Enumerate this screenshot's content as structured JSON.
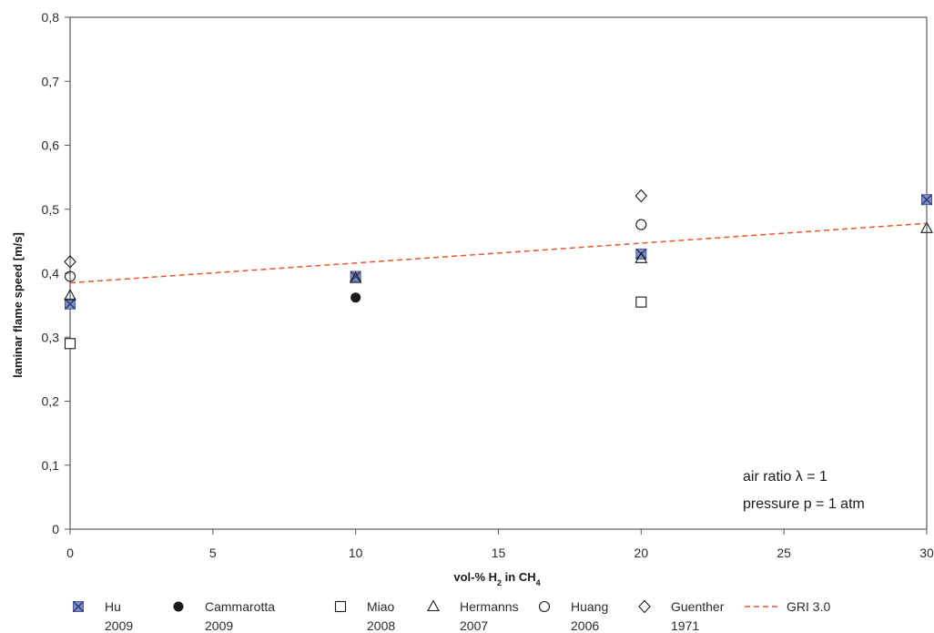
{
  "chart_data": {
    "type": "scatter",
    "xlabel_parts": [
      "vol-% H",
      "2",
      " in CH",
      "4"
    ],
    "ylabel": "laminar flame speed [m/s]",
    "xlim": [
      0,
      30
    ],
    "ylim": [
      0,
      0.8
    ],
    "x_ticks": [
      0,
      5,
      10,
      15,
      20,
      25,
      30
    ],
    "x_tick_labels": [
      "0",
      "5",
      "10",
      "15",
      "20",
      "25",
      "30"
    ],
    "y_ticks": [
      0,
      0.1,
      0.2,
      0.3,
      0.4,
      0.5,
      0.6,
      0.7,
      0.8
    ],
    "y_tick_labels": [
      "0",
      "0,1",
      "0,2",
      "0,3",
      "0,4",
      "0,5",
      "0,6",
      "0,7",
      "0,8"
    ],
    "grid": false,
    "legend_position": "bottom",
    "annotations": [
      "air ratio λ = 1",
      "pressure p = 1 atm"
    ],
    "series": [
      {
        "name": [
          "Hu",
          "2009"
        ],
        "marker": "square-x",
        "color": "#4a5a9c",
        "points": [
          [
            0,
            0.352
          ],
          [
            10,
            0.395
          ],
          [
            20,
            0.43
          ],
          [
            30,
            0.515
          ]
        ]
      },
      {
        "name": [
          "Cammarotta",
          "2009"
        ],
        "marker": "filled-circle",
        "color": "#1a1a1a",
        "points": [
          [
            10,
            0.362
          ]
        ]
      },
      {
        "name": [
          "Miao",
          "2008"
        ],
        "marker": "open-square",
        "color": "#1a1a1a",
        "points": [
          [
            0,
            0.29
          ],
          [
            20,
            0.355
          ]
        ]
      },
      {
        "name": [
          "Hermanns",
          "2007"
        ],
        "marker": "open-triangle",
        "color": "#1a1a1a",
        "points": [
          [
            0,
            0.365
          ],
          [
            10,
            0.392
          ],
          [
            20,
            0.423
          ],
          [
            30,
            0.47
          ]
        ]
      },
      {
        "name": [
          "Huang",
          "2006"
        ],
        "marker": "open-circle",
        "color": "#1a1a1a",
        "points": [
          [
            0,
            0.395
          ],
          [
            20,
            0.476
          ]
        ]
      },
      {
        "name": [
          "Guenther",
          "1971"
        ],
        "marker": "open-diamond",
        "color": "#1a1a1a",
        "points": [
          [
            0,
            0.418
          ],
          [
            20,
            0.521
          ]
        ]
      },
      {
        "name": [
          "GRI 3.0"
        ],
        "marker": "dashed-line",
        "color": "#e8562a",
        "points": [
          [
            0,
            0.385
          ],
          [
            30,
            0.478
          ]
        ]
      }
    ]
  }
}
